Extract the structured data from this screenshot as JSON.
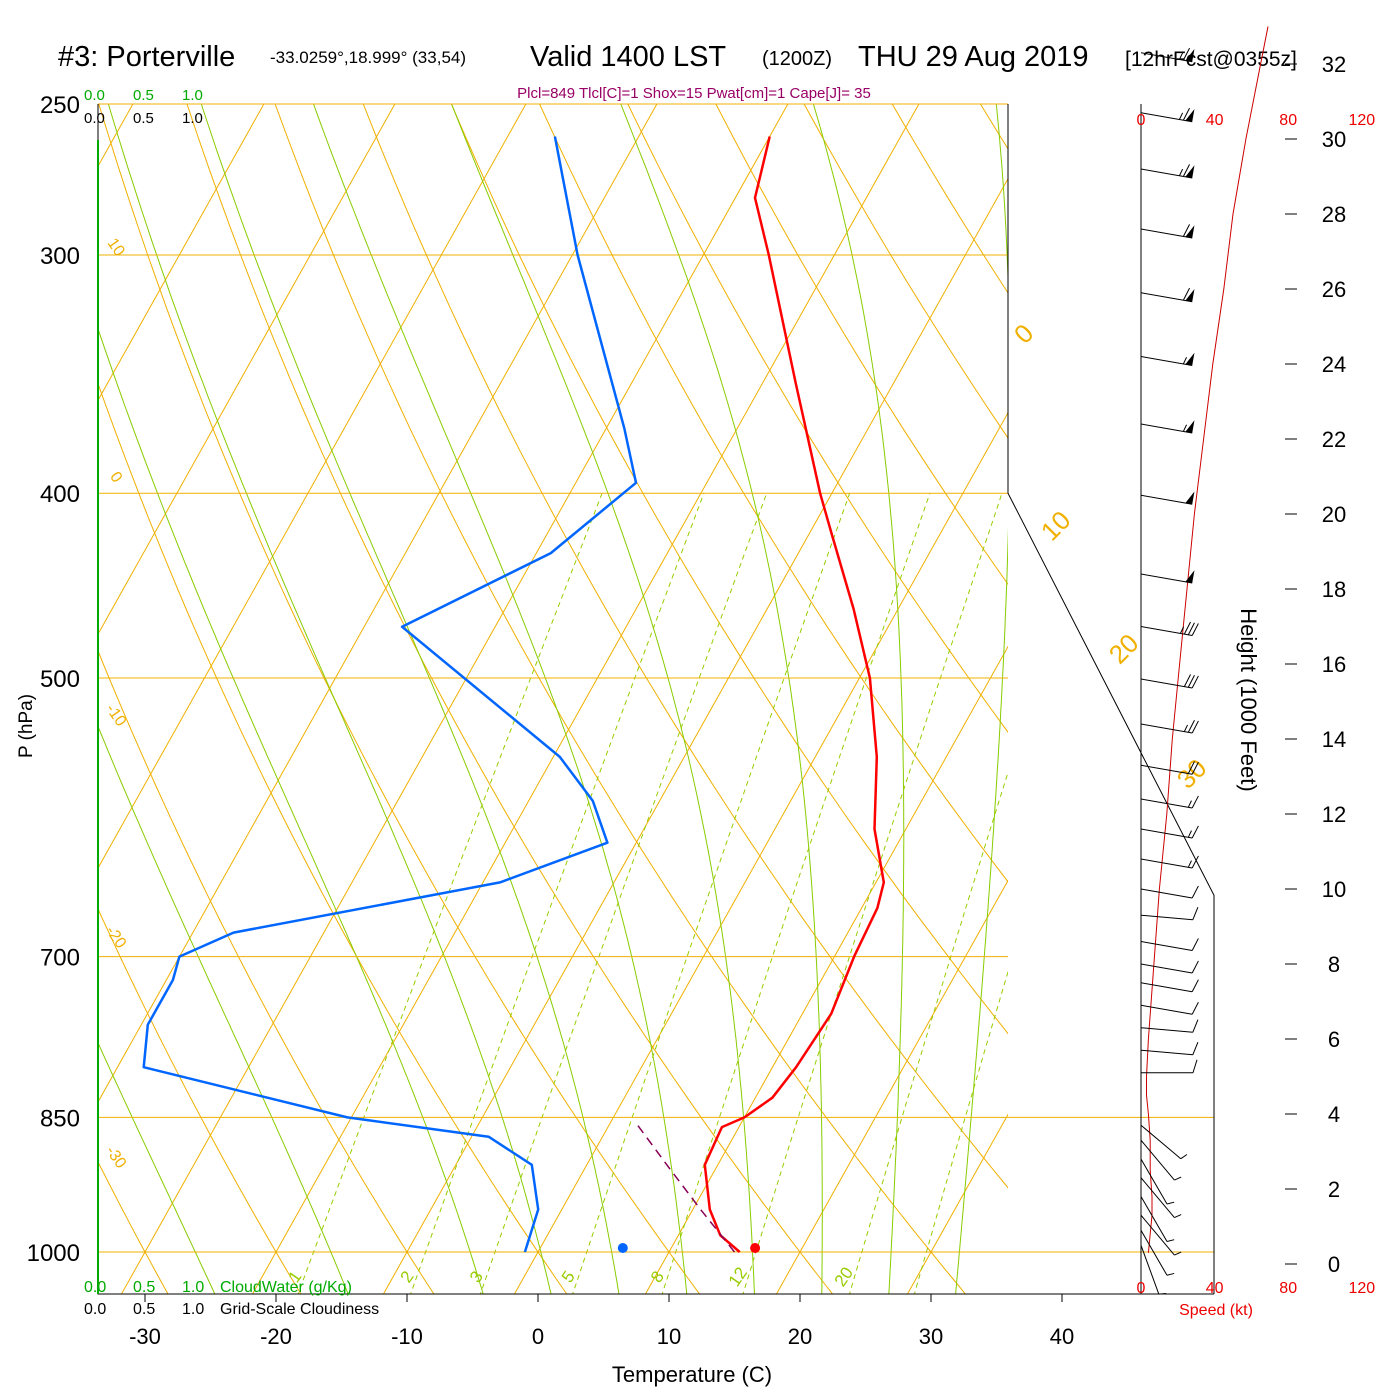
{
  "header": {
    "station": "#3: Porterville",
    "coords": "-33.0259°,18.999° (33,54)",
    "valid": "Valid 1400 LST",
    "utc": "(1200Z)",
    "date": "THU 29 Aug 2019",
    "forecast": "[12hrFcst@0355z]",
    "indices": "Plcl=849 Tlcl[C]=1 Shox=15 Pwat[cm]=1 Cape[J]= 35"
  },
  "colors": {
    "temperature": "#ff0000",
    "dewpoint": "#0066ff",
    "isotherm": "#f0b000",
    "moist_adiabat": "#88cc00",
    "mixing_ratio": "#99cc00",
    "cloud": "#00aa00",
    "parcel": "#880055",
    "indices_text": "#990066"
  },
  "chart_data": {
    "type": "line",
    "title": "#3: Porterville",
    "xlabel": "Temperature (C)",
    "ylabel": "P (hPa)",
    "y2label": "Height (1000 Feet)",
    "x_ticks": [
      "-30",
      "-20",
      "-10",
      "0",
      "10",
      "20",
      "30",
      "40"
    ],
    "p_ticks": [
      "250",
      "300",
      "400",
      "500",
      "700",
      "850",
      "1000"
    ],
    "height_ticks": [
      "32",
      "30",
      "28",
      "26",
      "24",
      "22",
      "20",
      "18",
      "16",
      "14",
      "12",
      "10",
      "8",
      "6",
      "4",
      "2",
      "0"
    ],
    "wind_speed_ticks": [
      "0",
      "40",
      "80",
      "120"
    ],
    "wind_speed_label": "Speed (kt)",
    "cloud_scale": [
      "0.0",
      "0.5",
      "1.0"
    ],
    "cloudwater_label": "CloudWater (g/Kg)",
    "cloudiness_label": "Grid-Scale Cloudiness",
    "mixing_ratio_labels": [
      "1",
      "2",
      "3",
      "5",
      "8",
      "12",
      "20"
    ],
    "isotherm_labels": [
      "10",
      "0",
      "-10",
      "-20",
      "-30"
    ],
    "adiabat_labels": [
      "0",
      "10",
      "20",
      "30"
    ],
    "series": [
      {
        "name": "Temperature",
        "points": [
          {
            "p": 1000,
            "t": 15.4
          },
          {
            "p": 980,
            "t": 13.2
          },
          {
            "p": 950,
            "t": 11.3
          },
          {
            "p": 900,
            "t": 9.0
          },
          {
            "p": 860,
            "t": 8.7
          },
          {
            "p": 850,
            "t": 10.0
          },
          {
            "p": 830,
            "t": 11.3
          },
          {
            "p": 800,
            "t": 11.8
          },
          {
            "p": 750,
            "t": 12.2
          },
          {
            "p": 700,
            "t": 11.5
          },
          {
            "p": 660,
            "t": 11.2
          },
          {
            "p": 640,
            "t": 10.6
          },
          {
            "p": 600,
            "t": 7.6
          },
          {
            "p": 550,
            "t": 4.7
          },
          {
            "p": 500,
            "t": 0.8
          },
          {
            "p": 460,
            "t": -3.4
          },
          {
            "p": 420,
            "t": -8.3
          },
          {
            "p": 400,
            "t": -10.9
          },
          {
            "p": 350,
            "t": -17.5
          },
          {
            "p": 300,
            "t": -25.0
          },
          {
            "p": 280,
            "t": -28.5
          },
          {
            "p": 260,
            "t": -30.0
          }
        ]
      },
      {
        "name": "Dewpoint",
        "points": [
          {
            "p": 1000,
            "t": -1.0
          },
          {
            "p": 950,
            "t": -1.8
          },
          {
            "p": 900,
            "t": -4.2
          },
          {
            "p": 870,
            "t": -8.7
          },
          {
            "p": 850,
            "t": -20.3
          },
          {
            "p": 800,
            "t": -38.0
          },
          {
            "p": 760,
            "t": -39.5
          },
          {
            "p": 720,
            "t": -39.5
          },
          {
            "p": 700,
            "t": -40.0
          },
          {
            "p": 680,
            "t": -36.9
          },
          {
            "p": 640,
            "t": -18.7
          },
          {
            "p": 610,
            "t": -12.2
          },
          {
            "p": 580,
            "t": -15.1
          },
          {
            "p": 550,
            "t": -19.5
          },
          {
            "p": 470,
            "t": -37.1
          },
          {
            "p": 430,
            "t": -28.9
          },
          {
            "p": 395,
            "t": -25.4
          },
          {
            "p": 370,
            "t": -28.6
          },
          {
            "p": 300,
            "t": -39.6
          },
          {
            "p": 260,
            "t": -46.4
          }
        ]
      },
      {
        "name": "Parcel",
        "points": [
          {
            "p": 1000,
            "t": 15.0
          },
          {
            "p": 950,
            "t": 10.6
          },
          {
            "p": 900,
            "t": 6.1
          },
          {
            "p": 855,
            "t": 1.9
          }
        ]
      }
    ],
    "surface": {
      "t": 16.4,
      "td": 6.3
    },
    "wind_profile": [
      {
        "h": 0.3,
        "speed": 4
      },
      {
        "h": 0.8,
        "speed": 5
      },
      {
        "h": 1.3,
        "speed": 6
      },
      {
        "h": 1.8,
        "speed": 6
      },
      {
        "h": 2.5,
        "speed": 5
      },
      {
        "h": 3.3,
        "speed": 5
      },
      {
        "h": 4.0,
        "speed": 4
      },
      {
        "h": 4.5,
        "speed": 3
      },
      {
        "h": 5.0,
        "speed": 3
      },
      {
        "h": 6.0,
        "speed": 4
      },
      {
        "h": 8.0,
        "speed": 7
      },
      {
        "h": 10.0,
        "speed": 10
      },
      {
        "h": 12.0,
        "speed": 14
      },
      {
        "h": 14.0,
        "speed": 17
      },
      {
        "h": 16.0,
        "speed": 21
      },
      {
        "h": 18.0,
        "speed": 25
      },
      {
        "h": 20.0,
        "speed": 29
      },
      {
        "h": 22.0,
        "speed": 34
      },
      {
        "h": 24.0,
        "speed": 39
      },
      {
        "h": 26.0,
        "speed": 45
      },
      {
        "h": 28.0,
        "speed": 50
      },
      {
        "h": 30.0,
        "speed": 57
      },
      {
        "h": 32.0,
        "speed": 65
      },
      {
        "h": 33.0,
        "speed": 69
      }
    ],
    "barbs": [
      {
        "h": 0.5,
        "speed": 5,
        "dir": 340
      },
      {
        "h": 0.9,
        "speed": 5,
        "dir": 330
      },
      {
        "h": 1.3,
        "speed": 5,
        "dir": 320
      },
      {
        "h": 1.8,
        "speed": 5,
        "dir": 330
      },
      {
        "h": 2.3,
        "speed": 5,
        "dir": 320
      },
      {
        "h": 2.8,
        "speed": 5,
        "dir": 330
      },
      {
        "h": 3.3,
        "speed": 5,
        "dir": 320
      },
      {
        "h": 3.7,
        "speed": 5,
        "dir": 310
      },
      {
        "h": 5.1,
        "speed": 10,
        "dir": 270
      },
      {
        "h": 5.7,
        "speed": 10,
        "dir": 275
      },
      {
        "h": 6.3,
        "speed": 10,
        "dir": 275
      },
      {
        "h": 6.9,
        "speed": 10,
        "dir": 280
      },
      {
        "h": 7.5,
        "speed": 10,
        "dir": 280
      },
      {
        "h": 8.0,
        "speed": 10,
        "dir": 280
      },
      {
        "h": 8.6,
        "speed": 10,
        "dir": 280
      },
      {
        "h": 9.3,
        "speed": 10,
        "dir": 275
      },
      {
        "h": 10.0,
        "speed": 10,
        "dir": 280
      },
      {
        "h": 10.8,
        "speed": 15,
        "dir": 280
      },
      {
        "h": 11.6,
        "speed": 15,
        "dir": 280
      },
      {
        "h": 12.4,
        "speed": 15,
        "dir": 280
      },
      {
        "h": 13.3,
        "speed": 20,
        "dir": 280
      },
      {
        "h": 14.4,
        "speed": 25,
        "dir": 280
      },
      {
        "h": 15.6,
        "speed": 30,
        "dir": 280
      },
      {
        "h": 17.0,
        "speed": 35,
        "dir": 280
      },
      {
        "h": 18.4,
        "speed": 50,
        "dir": 280
      },
      {
        "h": 20.5,
        "speed": 50,
        "dir": 280
      },
      {
        "h": 22.4,
        "speed": 55,
        "dir": 280
      },
      {
        "h": 24.2,
        "speed": 55,
        "dir": 280
      },
      {
        "h": 25.9,
        "speed": 60,
        "dir": 280
      },
      {
        "h": 27.6,
        "speed": 60,
        "dir": 280
      },
      {
        "h": 29.2,
        "speed": 65,
        "dir": 280
      },
      {
        "h": 30.7,
        "speed": 65,
        "dir": 280
      },
      {
        "h": 32.3,
        "speed": 65,
        "dir": 280
      }
    ]
  }
}
